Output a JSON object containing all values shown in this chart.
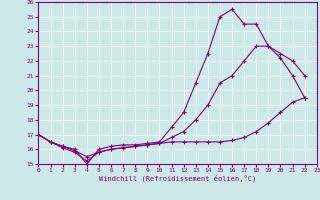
{
  "xlabel": "Windchill (Refroidissement éolien,°C)",
  "xlim": [
    0,
    23
  ],
  "ylim": [
    15,
    26
  ],
  "yticks": [
    15,
    16,
    17,
    18,
    19,
    20,
    21,
    22,
    23,
    24,
    25,
    26
  ],
  "xticks": [
    0,
    1,
    2,
    3,
    4,
    5,
    6,
    7,
    8,
    9,
    10,
    11,
    12,
    13,
    14,
    15,
    16,
    17,
    18,
    19,
    20,
    21,
    22,
    23
  ],
  "bg_color": "#cce8e8",
  "line_color": "#800080",
  "line1_x": [
    0,
    1,
    2,
    3,
    4,
    5,
    6,
    7,
    8,
    9,
    10,
    11,
    12,
    13,
    14,
    15,
    16,
    17,
    18,
    19,
    20,
    21,
    22
  ],
  "line1_y": [
    17.0,
    16.5,
    16.2,
    16.0,
    15.0,
    16.0,
    16.2,
    16.3,
    16.3,
    16.4,
    16.5,
    17.5,
    18.5,
    20.5,
    22.5,
    25.0,
    25.5,
    24.5,
    24.5,
    23.0,
    22.2,
    21.0,
    19.5
  ],
  "line2_x": [
    0,
    1,
    2,
    3,
    4,
    5,
    6,
    7,
    8,
    9,
    10,
    11,
    12,
    13,
    14,
    15,
    16,
    17,
    18,
    19,
    20,
    21,
    22
  ],
  "line2_y": [
    17.0,
    16.5,
    16.1,
    15.8,
    15.2,
    15.8,
    16.0,
    16.1,
    16.2,
    16.3,
    16.4,
    16.5,
    16.5,
    16.5,
    16.5,
    16.5,
    16.6,
    16.8,
    17.2,
    17.8,
    18.5,
    19.2,
    19.5
  ],
  "line3_x": [
    0,
    1,
    2,
    3,
    4,
    5,
    6,
    7,
    8,
    9,
    10,
    11,
    12,
    13,
    14,
    15,
    16,
    17,
    18,
    19,
    20,
    21,
    22
  ],
  "line3_y": [
    17.0,
    16.5,
    16.2,
    15.9,
    15.5,
    15.8,
    16.0,
    16.1,
    16.2,
    16.3,
    16.4,
    16.8,
    17.2,
    18.0,
    19.0,
    20.5,
    21.0,
    22.0,
    23.0,
    23.0,
    22.5,
    22.0,
    21.0
  ],
  "marker": "+",
  "marker_size": 3,
  "linewidth": 0.8
}
